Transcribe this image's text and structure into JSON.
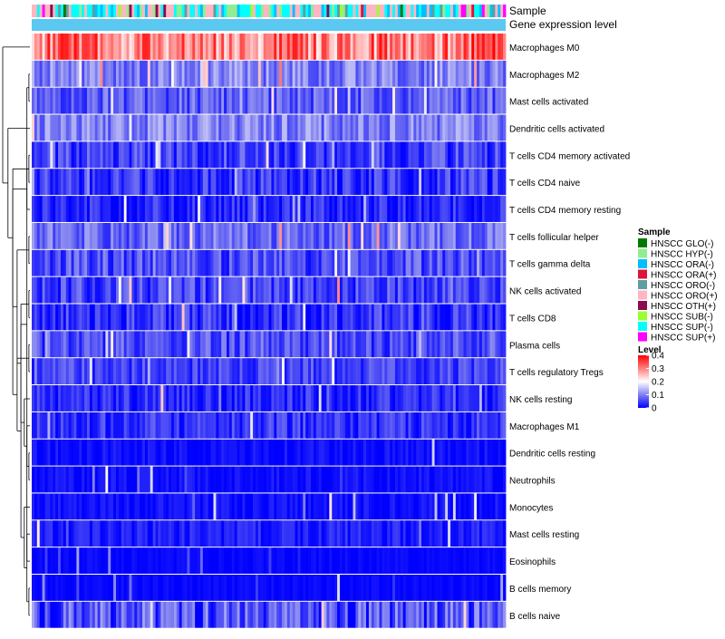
{
  "chart_data": {
    "type": "heatmap",
    "annotation_tracks": [
      "Sample",
      "Gene expression level"
    ],
    "rows": [
      {
        "label": "Macrophages M0",
        "mean_level": 0.3,
        "spread": 0.09
      },
      {
        "label": "Macrophages M2",
        "mean_level": 0.1,
        "spread": 0.05
      },
      {
        "label": "Mast cells activated",
        "mean_level": 0.07,
        "spread": 0.05
      },
      {
        "label": "Dendritic cells activated",
        "mean_level": 0.1,
        "spread": 0.05
      },
      {
        "label": "T cells CD4 memory activated",
        "mean_level": 0.05,
        "spread": 0.05
      },
      {
        "label": "T cells CD4 naive",
        "mean_level": 0.04,
        "spread": 0.05
      },
      {
        "label": "T cells CD4 memory resting",
        "mean_level": 0.03,
        "spread": 0.04
      },
      {
        "label": "T cells follicular helper",
        "mean_level": 0.08,
        "spread": 0.05
      },
      {
        "label": "T cells gamma delta",
        "mean_level": 0.06,
        "spread": 0.05
      },
      {
        "label": "NK cells activated",
        "mean_level": 0.05,
        "spread": 0.05
      },
      {
        "label": "T cells CD8",
        "mean_level": 0.04,
        "spread": 0.05
      },
      {
        "label": "Plasma cells",
        "mean_level": 0.06,
        "spread": 0.05
      },
      {
        "label": "T cells regulatory  Tregs",
        "mean_level": 0.05,
        "spread": 0.04
      },
      {
        "label": "NK cells resting",
        "mean_level": 0.03,
        "spread": 0.04
      },
      {
        "label": "Macrophages M1",
        "mean_level": 0.04,
        "spread": 0.04
      },
      {
        "label": "Dendritic cells resting",
        "mean_level": 0.01,
        "spread": 0.02
      },
      {
        "label": "Neutrophils",
        "mean_level": 0.01,
        "spread": 0.02
      },
      {
        "label": "Monocytes",
        "mean_level": 0.01,
        "spread": 0.02
      },
      {
        "label": "Mast cells resting",
        "mean_level": 0.02,
        "spread": 0.03
      },
      {
        "label": "Eosinophils",
        "mean_level": 0.005,
        "spread": 0.01
      },
      {
        "label": "B cells memory",
        "mean_level": 0.005,
        "spread": 0.01
      },
      {
        "label": "B cells naive",
        "mean_level": 0.06,
        "spread": 0.07
      }
    ],
    "n_samples": 180,
    "color_scale": {
      "min": 0,
      "max": 0.4,
      "stops": [
        {
          "value": 0,
          "color": "#0000ff"
        },
        {
          "value": 0.1,
          "color": "#8080f0"
        },
        {
          "value": 0.2,
          "color": "#ffffff"
        },
        {
          "value": 0.4,
          "color": "#ff0000"
        }
      ]
    },
    "sample_groups": [
      {
        "name": "HNSCC GLO(-)",
        "color": "#007a00",
        "share": 0.03
      },
      {
        "name": "HNSCC HYP(-)",
        "color": "#90ee90",
        "share": 0.1
      },
      {
        "name": "HNSCC ORA(-)",
        "color": "#00bfff",
        "share": 0.16
      },
      {
        "name": "HNSCC ORA(+)",
        "color": "#dc143c",
        "share": 0.03
      },
      {
        "name": "HNSCC ORO(-)",
        "color": "#5f9ea0",
        "share": 0.06
      },
      {
        "name": "HNSCC ORO(+)",
        "color": "#ffb6c1",
        "share": 0.3
      },
      {
        "name": "HNSCC OTH(+)",
        "color": "#8b0a50",
        "share": 0.02
      },
      {
        "name": "HNSCC SUB(-)",
        "color": "#9aff32",
        "share": 0.03
      },
      {
        "name": "HNSCC SUP(-)",
        "color": "#00ffff",
        "share": 0.25
      },
      {
        "name": "HNSCC SUP(+)",
        "color": "#ff00ff",
        "share": 0.02
      }
    ],
    "gene_expression_level_color": "#5ac8f0",
    "dendrogram": [
      [
        4,
        5
      ],
      [
        1,
        2
      ],
      [
        20,
        21
      ],
      [
        19,
        23
      ],
      [
        18,
        24
      ],
      [
        15,
        16
      ],
      [
        26,
        17
      ],
      [
        14,
        27
      ],
      [
        25,
        28
      ],
      [
        13,
        29
      ],
      [
        9,
        10
      ],
      [
        7,
        8
      ],
      [
        32,
        31
      ],
      [
        11,
        12
      ],
      [
        34,
        33
      ],
      [
        35,
        30
      ],
      [
        36,
        22
      ],
      [
        6,
        22
      ],
      [
        3,
        38
      ],
      [
        39,
        37
      ],
      [
        0,
        40
      ]
    ]
  },
  "legend": {
    "sample_title": "Sample",
    "level_title": "Level",
    "level_ticks": [
      "0.4",
      "0.3",
      "0.2",
      "0.1",
      "0"
    ]
  }
}
